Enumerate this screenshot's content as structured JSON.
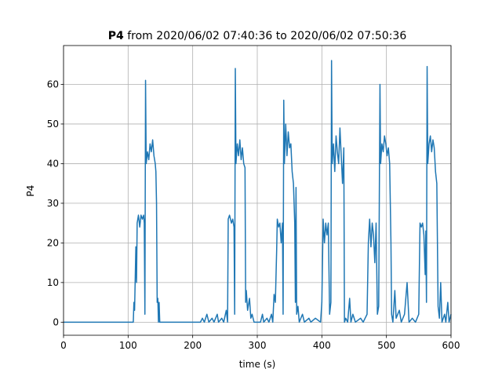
{
  "chart_data": {
    "type": "line",
    "title_parts": [
      "P4",
      "from 2020/06/02 07:40:36 to 2020/06/02 07:50:36"
    ],
    "x_label": "time (s)",
    "y_label": "P4",
    "xlim": [
      0,
      600
    ],
    "ylim": [
      -3.3,
      69.8
    ],
    "xticks": [
      0,
      100,
      200,
      300,
      400,
      500,
      600
    ],
    "yticks": [
      0,
      10,
      20,
      30,
      40,
      50,
      60
    ],
    "grid": true,
    "series": [
      {
        "name": "P4",
        "color": "#1f77b4",
        "x": [
          0,
          108,
          109,
          110,
          112,
          113,
          114,
          116,
          118,
          120,
          122,
          124,
          125,
          126,
          127,
          128,
          130,
          132,
          134,
          136,
          138,
          140,
          142,
          143,
          144,
          145,
          146,
          147,
          148,
          149,
          212,
          215,
          218,
          222,
          225,
          230,
          233,
          238,
          240,
          245,
          248,
          252,
          254,
          255,
          257,
          260,
          262,
          264,
          265,
          266,
          267,
          269,
          271,
          273,
          275,
          277,
          279,
          281,
          282,
          283,
          285,
          288,
          290,
          292,
          295,
          305,
          308,
          310,
          315,
          318,
          322,
          324,
          326,
          328,
          330,
          331,
          333,
          335,
          337,
          339,
          340,
          341,
          342,
          344,
          346,
          348,
          350,
          352,
          354,
          356,
          358,
          359,
          360,
          361,
          363,
          365,
          370,
          373,
          380,
          383,
          390,
          398,
          400,
          402,
          404,
          406,
          408,
          410,
          412,
          414,
          415,
          416,
          418,
          420,
          422,
          424,
          426,
          428,
          430,
          432,
          434,
          435,
          437,
          440,
          443,
          445,
          448,
          452,
          460,
          464,
          470,
          472,
          474,
          476,
          478,
          480,
          482,
          484,
          486,
          488,
          490,
          491,
          493,
          495,
          497,
          499,
          501,
          503,
          505,
          507,
          508,
          510,
          513,
          515,
          520,
          523,
          528,
          532,
          535,
          540,
          545,
          550,
          552,
          554,
          556,
          558,
          560,
          561,
          562,
          563,
          564,
          566,
          568,
          570,
          572,
          574,
          576,
          578,
          580,
          582,
          584,
          586,
          590,
          592,
          595,
          597,
          600
        ],
        "values": [
          0,
          0,
          5,
          3,
          19,
          10,
          25,
          27,
          24,
          27,
          26,
          27,
          25,
          2,
          61,
          40,
          43,
          41,
          45,
          43,
          46,
          42,
          40,
          38,
          30,
          5,
          6,
          0,
          5,
          0,
          0,
          1,
          0,
          2,
          0,
          1,
          0,
          2,
          0,
          1,
          0,
          3,
          0,
          26,
          27,
          25,
          26,
          24,
          2,
          64,
          40,
          45,
          42,
          46,
          41,
          44,
          40,
          39,
          5,
          8,
          3,
          6,
          1,
          2,
          0,
          0,
          2,
          0,
          1,
          0,
          2,
          0,
          7,
          5,
          18,
          26,
          24,
          25,
          20,
          25,
          2,
          56,
          40,
          50,
          42,
          48,
          44,
          45,
          38,
          35,
          25,
          5,
          34,
          2,
          4,
          0,
          2,
          0,
          1,
          0,
          1,
          0,
          5,
          26,
          20,
          25,
          22,
          25,
          2,
          5,
          66,
          40,
          45,
          38,
          47,
          43,
          40,
          49,
          42,
          35,
          44,
          0,
          1,
          0,
          6,
          0,
          2,
          0,
          1,
          0,
          2,
          20,
          26,
          19,
          25,
          22,
          15,
          25,
          2,
          4,
          60,
          40,
          45,
          43,
          47,
          45,
          42,
          44,
          40,
          20,
          2,
          0,
          8,
          1,
          3,
          0,
          2,
          10,
          0,
          1,
          0,
          2,
          25,
          24,
          25,
          22,
          12,
          23,
          5,
          64.5,
          40,
          45,
          47,
          43,
          46,
          44,
          38,
          35,
          4,
          1,
          10,
          0,
          2,
          0,
          5,
          0,
          2
        ]
      }
    ]
  }
}
